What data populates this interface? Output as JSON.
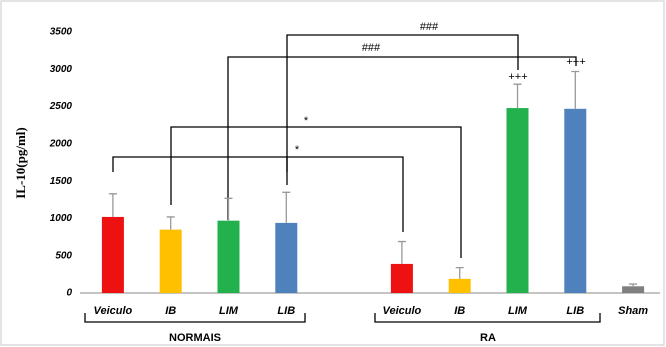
{
  "chart_data": {
    "type": "bar",
    "y_label": "IL-10(pg/ml)",
    "categories": [
      "Veiculo",
      "IB",
      "LIM",
      "LIB",
      null,
      "Veiculo",
      "IB",
      "LIM",
      "LIB",
      "Sham"
    ],
    "values": [
      1020,
      850,
      970,
      940,
      null,
      390,
      190,
      2480,
      2470,
      90
    ],
    "errors": [
      310,
      170,
      300,
      410,
      null,
      300,
      150,
      320,
      500,
      30
    ],
    "colors": [
      "#ee1111",
      "#ffc000",
      "#22b14c",
      "#4f81bd",
      null,
      "#ee1111",
      "#ffc000",
      "#22b14c",
      "#4f81bd",
      "#7f7f7f"
    ],
    "ylim": [
      0,
      3500
    ],
    "yticks": [
      0,
      500,
      1000,
      1500,
      2000,
      2500,
      3000,
      3500
    ],
    "group_labels": [
      "NORMAIS",
      "RA"
    ],
    "annotations": [
      "*",
      "*",
      "###",
      "###",
      "+++",
      "+++"
    ]
  }
}
